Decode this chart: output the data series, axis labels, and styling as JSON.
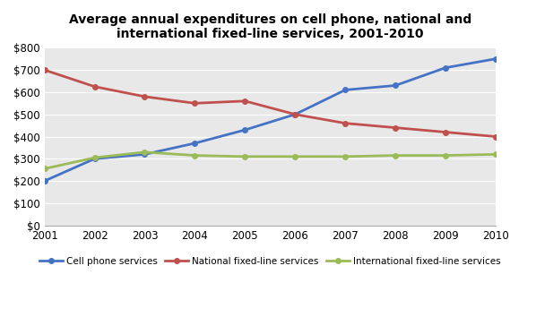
{
  "title": "Average annual expenditures on cell phone, national and\ninternational fixed-line services, 2001-2010",
  "years": [
    2001,
    2002,
    2003,
    2004,
    2005,
    2006,
    2007,
    2008,
    2009,
    2010
  ],
  "cell_phone": [
    200,
    300,
    320,
    370,
    430,
    500,
    610,
    630,
    710,
    750
  ],
  "national_fixed": [
    700,
    625,
    580,
    550,
    560,
    500,
    460,
    440,
    420,
    400
  ],
  "international_fixed": [
    255,
    305,
    330,
    315,
    310,
    310,
    310,
    315,
    315,
    320
  ],
  "cell_phone_color": "#4472C4",
  "national_fixed_color": "#C0504D",
  "international_fixed_color": "#9BBB59",
  "ylim": [
    0,
    800
  ],
  "yticks": [
    0,
    100,
    200,
    300,
    400,
    500,
    600,
    700,
    800
  ],
  "legend_labels": [
    "Cell phone services",
    "National fixed-line services",
    "International fixed-line services"
  ],
  "background_color": "#FFFFFF",
  "plot_bg_color": "#E8E8E8",
  "grid_color": "#FFFFFF"
}
